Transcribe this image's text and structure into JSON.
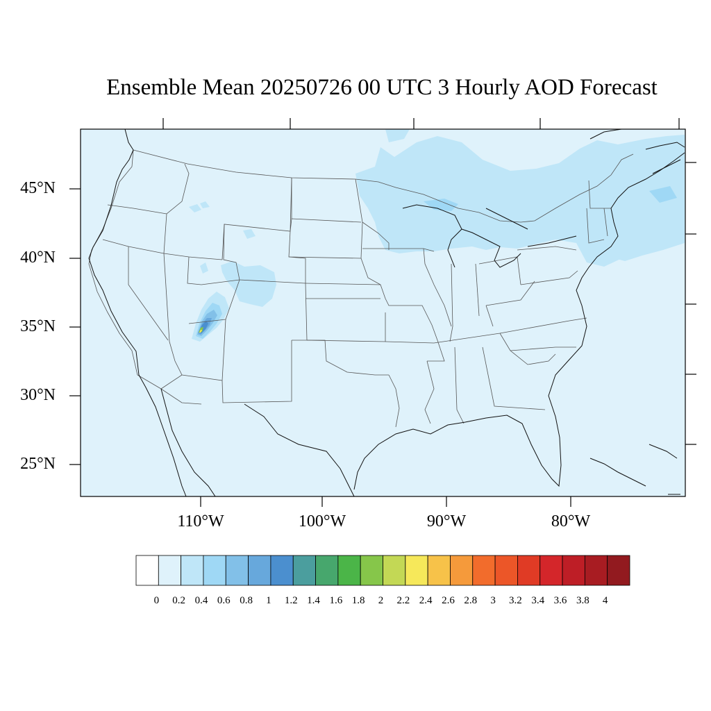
{
  "title": "Ensemble Mean 20250726 00 UTC 3 Hourly AOD Forecast",
  "lat_labels": [
    "45°N",
    "40°N",
    "35°N",
    "30°N",
    "25°N"
  ],
  "lon_labels": [
    "110°W",
    "100°W",
    "90°W",
    "80°W"
  ],
  "colorbar": {
    "labels": [
      "0",
      "0.2",
      "0.4",
      "0.6",
      "0.8",
      "1",
      "1.2",
      "1.4",
      "1.6",
      "1.8",
      "2",
      "2.2",
      "2.4",
      "2.6",
      "2.8",
      "3",
      "3.2",
      "3.4",
      "3.6",
      "3.8",
      "4"
    ],
    "colors": [
      "#ffffff",
      "#dff2fb",
      "#bfe6f8",
      "#9fd8f5",
      "#82c0e8",
      "#67a8dc",
      "#4b8fcf",
      "#4b9e9e",
      "#47a76d",
      "#4bb548",
      "#86c64a",
      "#c3d855",
      "#f6e85a",
      "#f7c249",
      "#f59a3b",
      "#f26c2c",
      "#ec5628",
      "#e03b25",
      "#d4262a",
      "#be1e26",
      "#a81c22",
      "#921a1f"
    ]
  },
  "map_colors": {
    "background": "#dff2fb",
    "level_04": "#bfe6f8",
    "level_06": "#9fd8f5",
    "level_08": "#82c0e8",
    "level_10": "#67a8dc",
    "level_12": "#4b8fcf",
    "level_18": "#86c64a",
    "level_22": "#f6e85a"
  }
}
